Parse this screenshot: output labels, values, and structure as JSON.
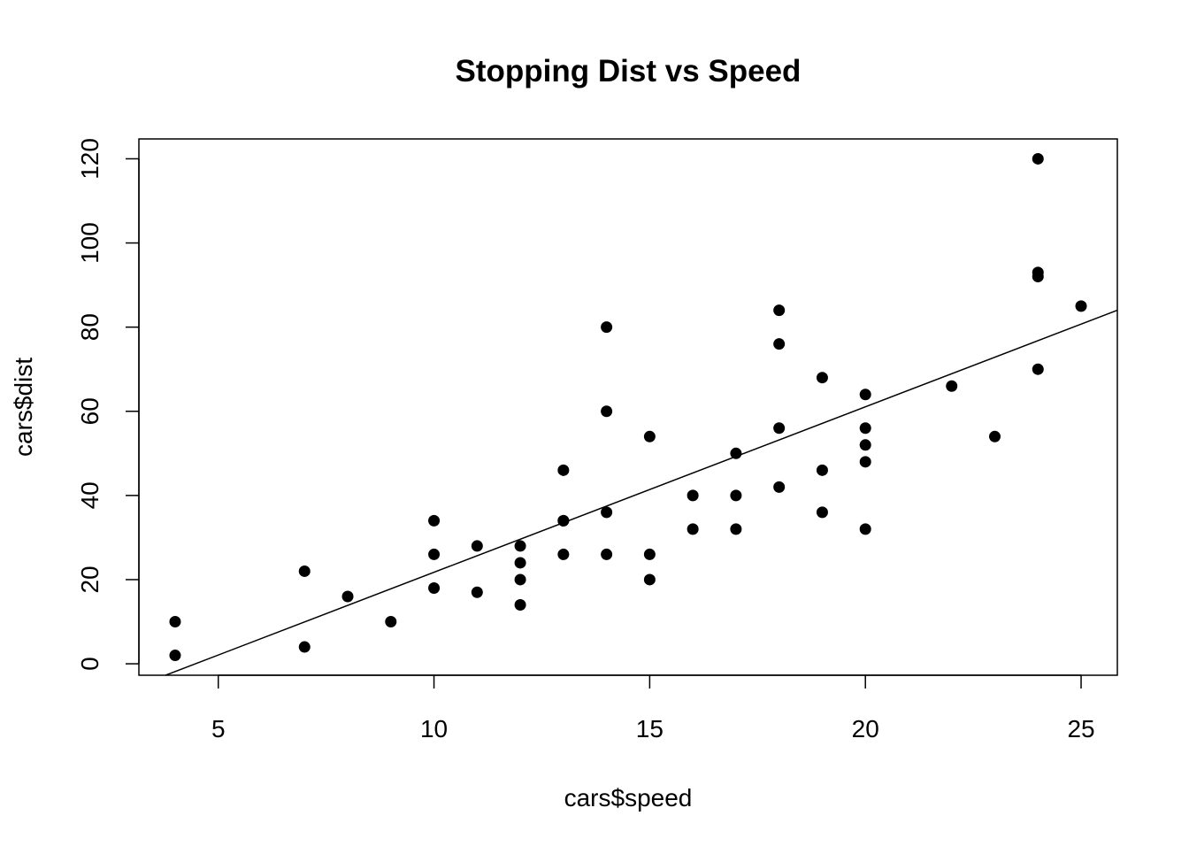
{
  "chart_data": {
    "type": "scatter",
    "title": "Stopping Dist vs Speed",
    "xlabel": "cars$speed",
    "ylabel": "cars$dist",
    "xlim": [
      3.16,
      25.84
    ],
    "ylim": [
      -2.72,
      124.72
    ],
    "x_ticks": [
      5,
      10,
      15,
      20,
      25
    ],
    "y_ticks": [
      0,
      20,
      40,
      60,
      80,
      100,
      120
    ],
    "grid": false,
    "legend": "none",
    "point_color": "#000000",
    "points": [
      {
        "x": 4,
        "y": 2
      },
      {
        "x": 4,
        "y": 10
      },
      {
        "x": 7,
        "y": 4
      },
      {
        "x": 7,
        "y": 22
      },
      {
        "x": 8,
        "y": 16
      },
      {
        "x": 9,
        "y": 10
      },
      {
        "x": 10,
        "y": 18
      },
      {
        "x": 10,
        "y": 26
      },
      {
        "x": 10,
        "y": 34
      },
      {
        "x": 11,
        "y": 17
      },
      {
        "x": 11,
        "y": 28
      },
      {
        "x": 12,
        "y": 14
      },
      {
        "x": 12,
        "y": 20
      },
      {
        "x": 12,
        "y": 24
      },
      {
        "x": 12,
        "y": 28
      },
      {
        "x": 13,
        "y": 26
      },
      {
        "x": 13,
        "y": 34
      },
      {
        "x": 13,
        "y": 34
      },
      {
        "x": 13,
        "y": 46
      },
      {
        "x": 14,
        "y": 26
      },
      {
        "x": 14,
        "y": 36
      },
      {
        "x": 14,
        "y": 60
      },
      {
        "x": 14,
        "y": 80
      },
      {
        "x": 15,
        "y": 20
      },
      {
        "x": 15,
        "y": 26
      },
      {
        "x": 15,
        "y": 54
      },
      {
        "x": 16,
        "y": 32
      },
      {
        "x": 16,
        "y": 40
      },
      {
        "x": 17,
        "y": 32
      },
      {
        "x": 17,
        "y": 40
      },
      {
        "x": 17,
        "y": 50
      },
      {
        "x": 18,
        "y": 42
      },
      {
        "x": 18,
        "y": 56
      },
      {
        "x": 18,
        "y": 76
      },
      {
        "x": 18,
        "y": 84
      },
      {
        "x": 19,
        "y": 36
      },
      {
        "x": 19,
        "y": 46
      },
      {
        "x": 19,
        "y": 68
      },
      {
        "x": 20,
        "y": 32
      },
      {
        "x": 20,
        "y": 48
      },
      {
        "x": 20,
        "y": 52
      },
      {
        "x": 20,
        "y": 56
      },
      {
        "x": 20,
        "y": 64
      },
      {
        "x": 22,
        "y": 66
      },
      {
        "x": 23,
        "y": 54
      },
      {
        "x": 24,
        "y": 70
      },
      {
        "x": 24,
        "y": 92
      },
      {
        "x": 24,
        "y": 93
      },
      {
        "x": 24,
        "y": 120
      },
      {
        "x": 25,
        "y": 85
      }
    ],
    "regression_line": {
      "intercept": -17.579,
      "slope": 3.932
    }
  }
}
